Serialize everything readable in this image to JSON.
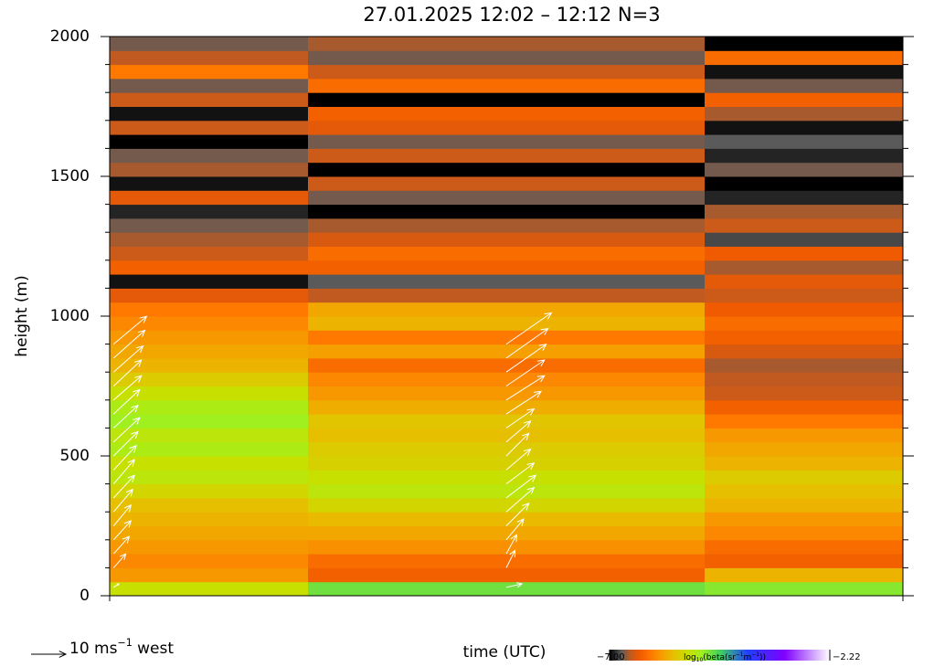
{
  "chart_data": {
    "type": "heatmap",
    "title": "27.01.2025 12:02 – 12:12 N=3",
    "ylabel": "height (m)",
    "xlabel": "time (UTC)",
    "xlim": [
      0,
      10
    ],
    "x_edges": [
      0,
      2.5,
      7.5,
      10
    ],
    "ylim": [
      0,
      2000
    ],
    "yticks": [
      0,
      500,
      1000,
      1500,
      2000
    ],
    "yminor_ticks": [
      100,
      200,
      300,
      400,
      600,
      700,
      800,
      900,
      1100,
      1200,
      1300,
      1400,
      1600,
      1700,
      1800,
      1900
    ],
    "bin_height": 50,
    "columns": [
      [
        -5.3,
        -5.9,
        -6.0,
        -5.9,
        -5.8,
        -5.7,
        -5.6,
        -5.4,
        -5.2,
        -5.3,
        -5.1,
        -5.2,
        -5.0,
        -5.1,
        -5.3,
        -5.5,
        -5.7,
        -5.8,
        -5.9,
        -6.0,
        -6.1,
        -6.4,
        -6.95,
        -6.3,
        -6.5,
        -6.6,
        -6.7,
        -6.9,
        -6.4,
        -6.95,
        -6.6,
        -6.7,
        -7.0,
        -6.5,
        -6.95,
        -6.5,
        -6.7,
        -6.1,
        -6.55,
        -6.7
      ],
      [
        -4.8,
        -6.3,
        -6.2,
        -5.95,
        -5.8,
        -5.65,
        -5.4,
        -5.2,
        -5.3,
        -5.45,
        -5.5,
        -5.6,
        -5.55,
        -5.75,
        -5.9,
        -6.0,
        -6.2,
        -5.85,
        -6.1,
        -5.7,
        -5.8,
        -6.55,
        -6.75,
        -6.3,
        -6.2,
        -6.45,
        -6.6,
        -7.0,
        -6.7,
        -6.5,
        -7.0,
        -6.5,
        -6.7,
        -6.4,
        -6.3,
        -7.0,
        -6.2,
        -6.5,
        -6.7,
        -6.6
      ],
      [
        -4.9,
        -5.7,
        -6.3,
        -6.2,
        -6.0,
        -5.9,
        -5.7,
        -5.6,
        -5.5,
        -5.7,
        -5.8,
        -5.9,
        -6.1,
        -6.3,
        -6.5,
        -6.55,
        -6.6,
        -6.45,
        -6.3,
        -6.2,
        -6.35,
        -6.5,
        -6.4,
        -6.6,
        -6.35,
        -6.8,
        -6.5,
        -6.6,
        -6.9,
        -7.0,
        -6.7,
        -6.9,
        -6.75,
        -6.95,
        -6.6,
        -6.3,
        -6.7,
        -6.95,
        -6.2,
        -7.0
      ]
    ],
    "colormap": [
      [
        -7.0,
        "#000000"
      ],
      [
        -6.75,
        "#5a5a5a"
      ],
      [
        -6.55,
        "#c05a20"
      ],
      [
        -6.35,
        "#f05a00"
      ],
      [
        -6.1,
        "#ff7800"
      ],
      [
        -5.85,
        "#f5a000"
      ],
      [
        -5.6,
        "#e6c000"
      ],
      [
        -5.3,
        "#c8e000"
      ],
      [
        -5.0,
        "#a0f020"
      ],
      [
        -4.6,
        "#40d060"
      ],
      [
        -4.0,
        "#2040ff"
      ],
      [
        -3.2,
        "#8000ff"
      ],
      [
        -2.22,
        "#ffffff"
      ]
    ],
    "colorbar": {
      "range": [
        -7.0,
        -2.22
      ],
      "ticks": [
        {
          "value": -7.0,
          "label": "−7.00"
        },
        {
          "value": -2.22,
          "label": "−2.22"
        }
      ],
      "label_parts": [
        {
          "text": "log",
          "shift": "normal"
        },
        {
          "text": "10",
          "shift": "sub"
        },
        {
          "text": "(beta(sr",
          "shift": "normal"
        },
        {
          "text": "−1",
          "shift": "super"
        },
        {
          "text": "m",
          "shift": "normal"
        },
        {
          "text": "−1",
          "shift": "super"
        },
        {
          "text": "))",
          "shift": "normal"
        }
      ]
    },
    "wind": {
      "color": "#ffffff",
      "reference_speed": 10,
      "legend_parts": [
        {
          "text": "10 ms",
          "shift": "normal"
        },
        {
          "text": "−1",
          "shift": "super"
        },
        {
          "text": " west",
          "shift": "normal"
        }
      ],
      "profiles": [
        {
          "x": 0.05,
          "heights": [
            30,
            100,
            150,
            200,
            250,
            300,
            350,
            400,
            450,
            500,
            550,
            600,
            650,
            700,
            750,
            800,
            850,
            900
          ],
          "u": [
            1.5,
            3.5,
            4.5,
            5,
            5,
            5.5,
            6,
            6,
            6.5,
            7,
            7.5,
            7,
            7.5,
            8,
            8,
            8.5,
            9,
            9.5
          ],
          "v": [
            1,
            4,
            5,
            5.5,
            6,
            6.5,
            6.5,
            7,
            7,
            7,
            7,
            6.5,
            7,
            7,
            7.5,
            7.5,
            8,
            8
          ]
        },
        {
          "x": 5.0,
          "heights": [
            30,
            100,
            150,
            200,
            250,
            300,
            350,
            400,
            450,
            500,
            550,
            600,
            650,
            700,
            750,
            800,
            850,
            900
          ],
          "u": [
            4.5,
            2.5,
            3,
            5,
            6.5,
            8,
            8.5,
            8,
            7,
            6.5,
            7,
            8,
            10,
            11,
            11,
            11.5,
            12,
            13
          ],
          "v": [
            1,
            5,
            5.5,
            6,
            6.5,
            7,
            6.5,
            6,
            6,
            6.5,
            6,
            5.5,
            6.5,
            7,
            7.5,
            8,
            8.5,
            9
          ]
        }
      ]
    }
  }
}
